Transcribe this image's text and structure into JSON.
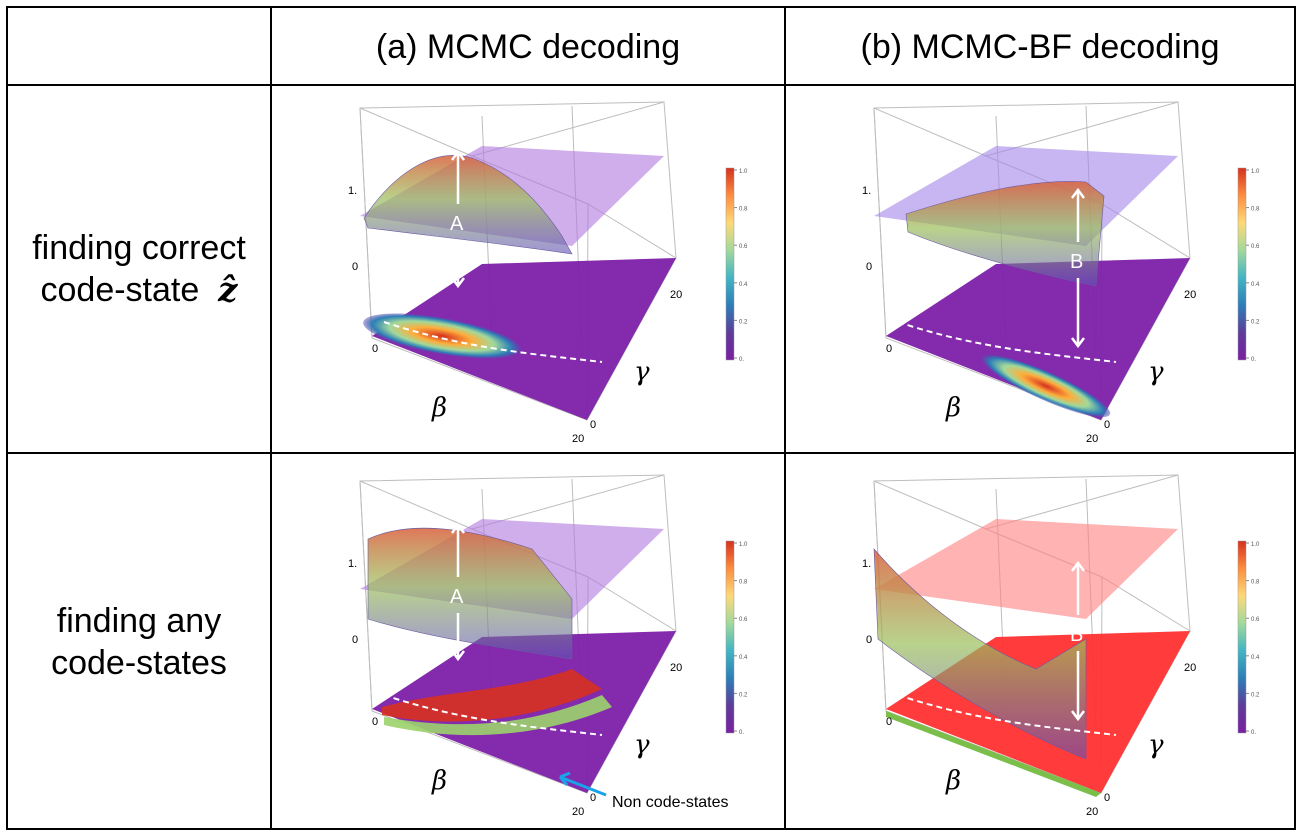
{
  "header": {
    "col_a": "(a) MCMC decoding",
    "col_b": "(b) MCMC-BF decoding"
  },
  "rows": [
    {
      "label_line1": "finding correct",
      "label_line2": "code-state",
      "label_symbol": "ẑ"
    },
    {
      "label_line1": "finding any",
      "label_line2": "code-states"
    }
  ],
  "plot": {
    "z_tick_top": "1.",
    "z_tick_bottom": "0",
    "x_tick_start": "0",
    "x_tick_end": "20",
    "y_tick_start": "0",
    "y_tick_end": "20",
    "beta_label": "β",
    "gamma_label": "γ"
  },
  "colorbar": {
    "ticks": [
      "1.0",
      "0.8",
      "0.6",
      "0.4",
      "0.2",
      "0."
    ],
    "colors": [
      "#d7301f",
      "#fd8d3c",
      "#fed976",
      "#a1d99b",
      "#41b6c4",
      "#2c7fb8",
      "#5e3c99",
      "#7a1fa2"
    ]
  },
  "annotations": {
    "marker_a": "A",
    "marker_b": "B",
    "non_code_states": "Non code-states"
  }
}
